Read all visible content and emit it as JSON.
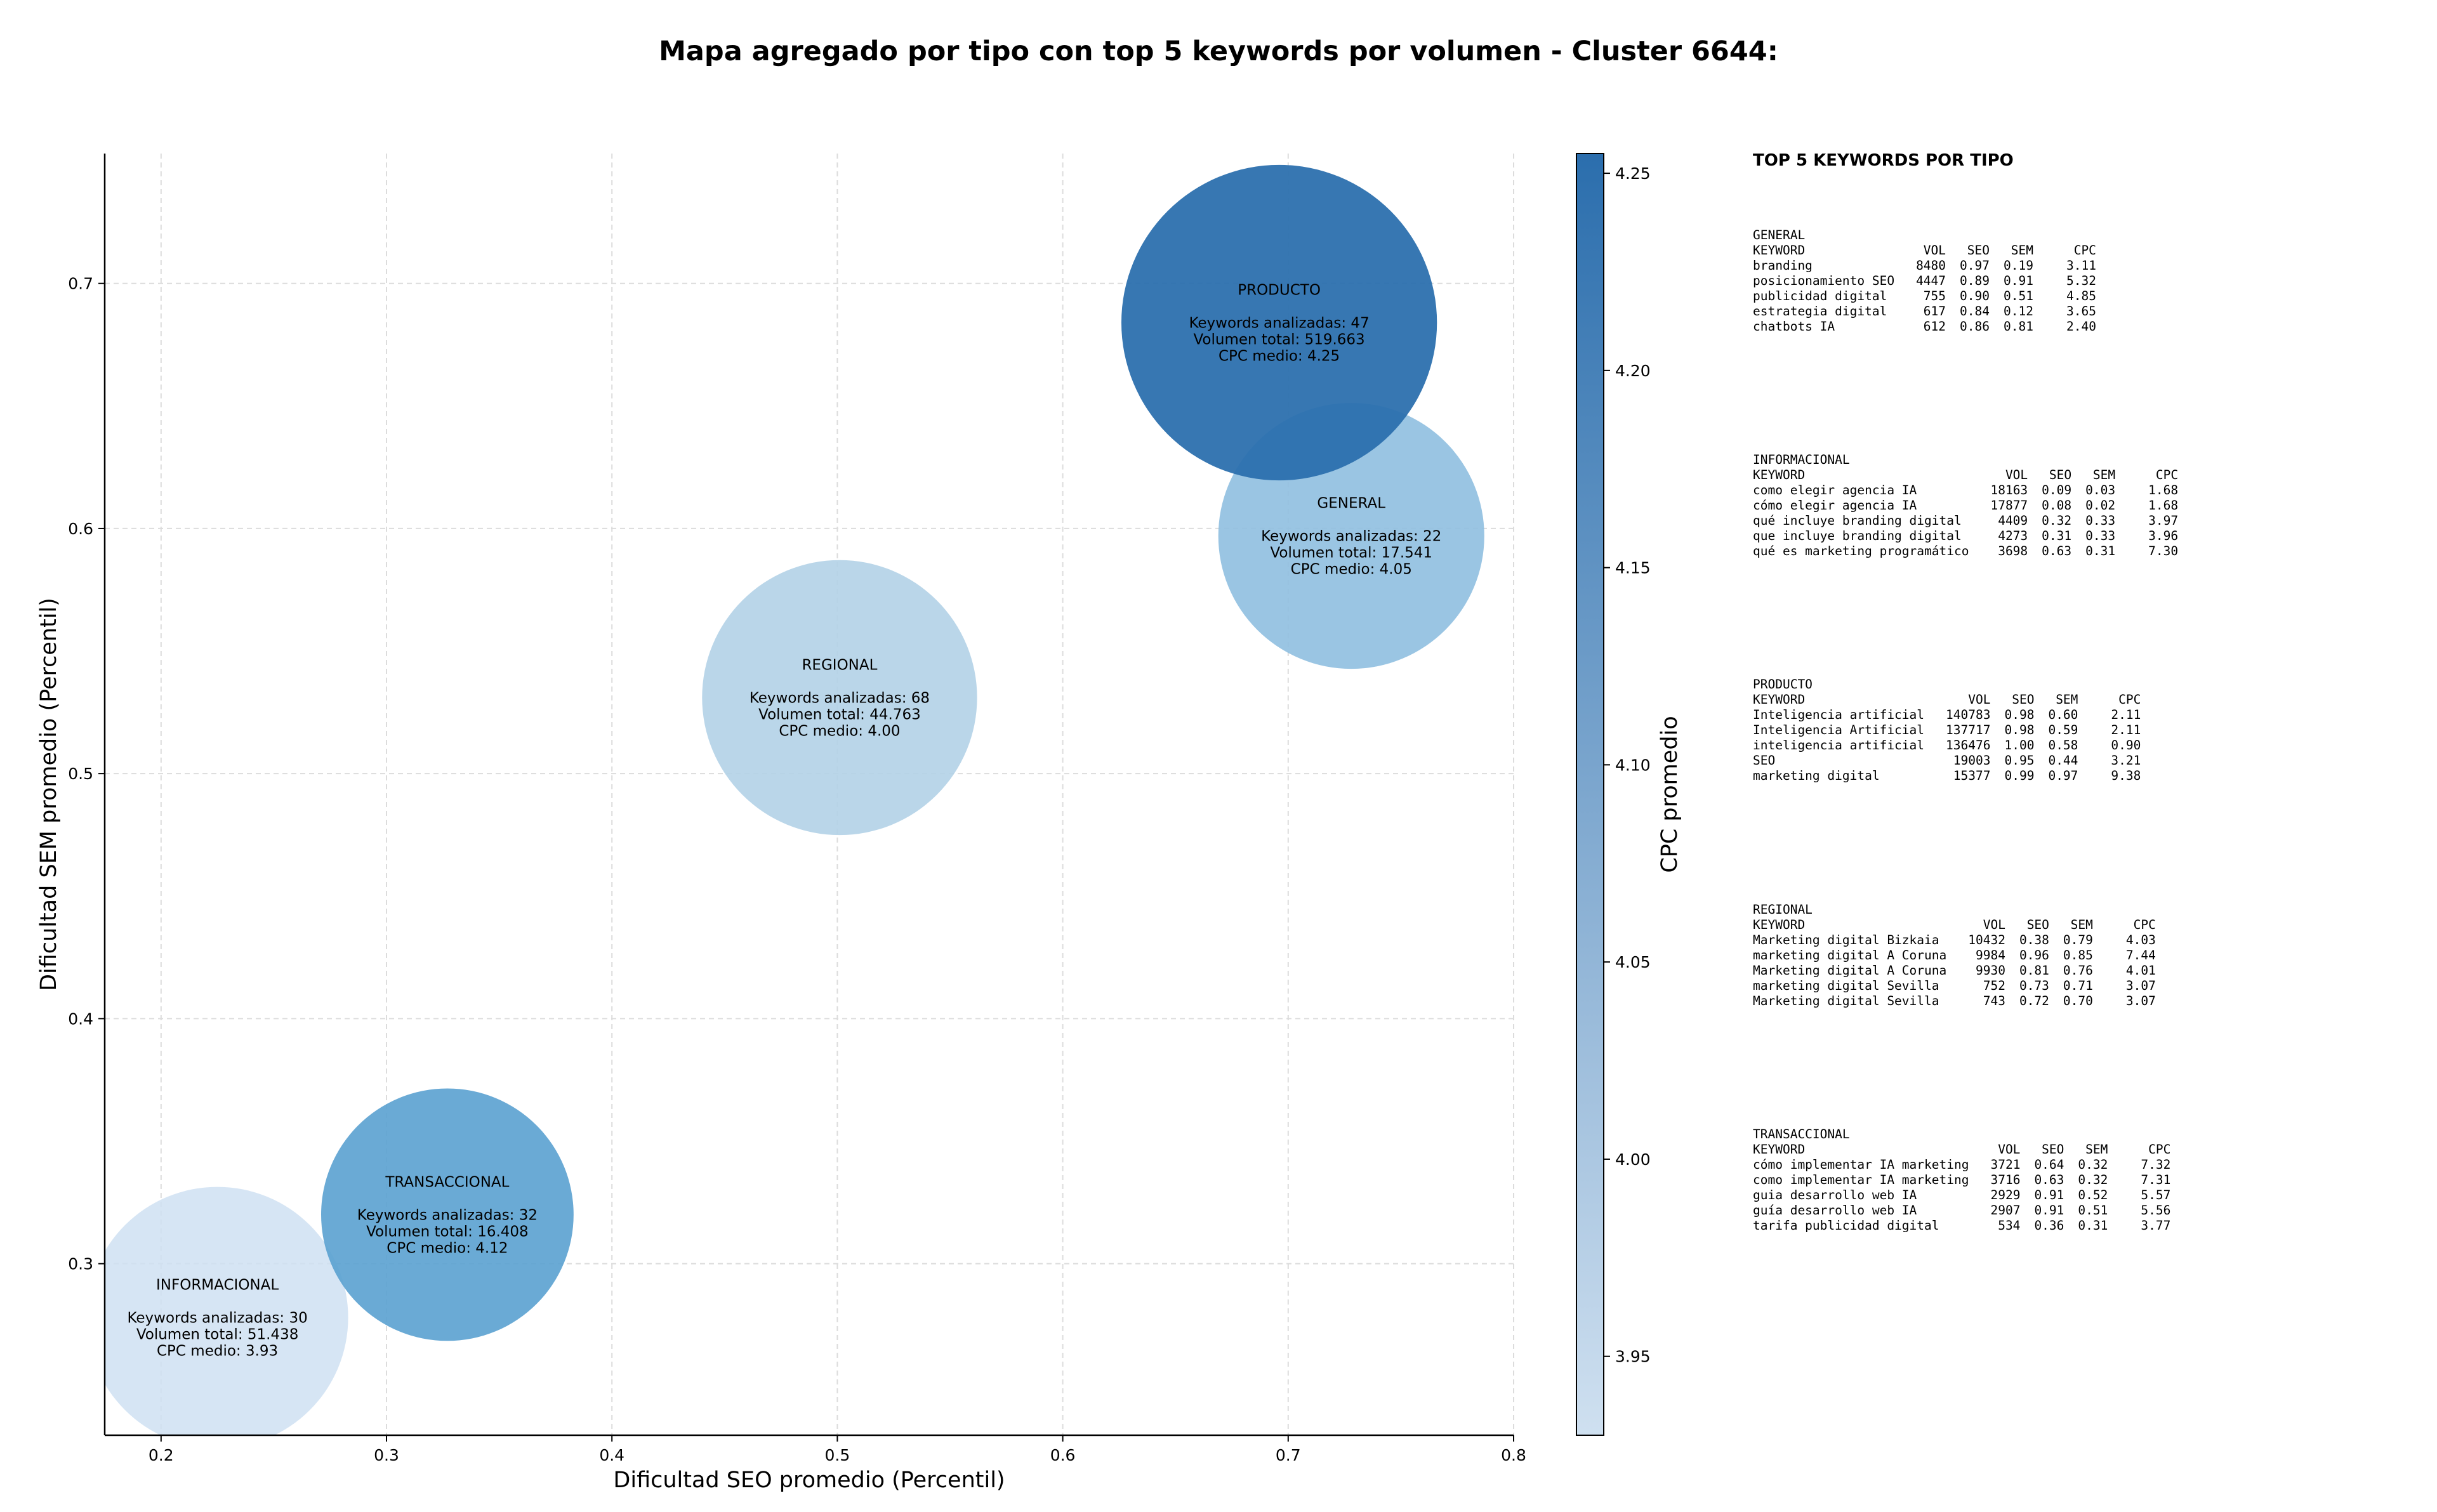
{
  "chart_data": {
    "type": "bubble",
    "title": "Mapa agregado por tipo con top 5 keywords por volumen - Cluster 6644:",
    "xlabel": "Dificultad SEO promedio (Percentil)",
    "ylabel": "Dificultad SEM promedio (Percentil)",
    "xlim": [
      0.175,
      0.8
    ],
    "ylim": [
      0.23,
      0.753
    ],
    "xticks": [
      "0.2",
      "0.3",
      "0.4",
      "0.5",
      "0.6",
      "0.7",
      "0.8"
    ],
    "yticks": [
      "0.3",
      "0.4",
      "0.5",
      "0.6",
      "0.7"
    ],
    "grid": true,
    "colorbar": {
      "label": "CPC promedio",
      "range": [
        3.93,
        4.255
      ],
      "ticks": [
        "3.95",
        "4.00",
        "4.05",
        "4.10",
        "4.15",
        "4.20",
        "4.25"
      ],
      "color_low": "#cfe0f0",
      "color_high": "#2b6ead"
    },
    "points": [
      {
        "name": "INFORMACIONAL",
        "x": 0.225,
        "y": 0.278,
        "radius_x": 0.058,
        "cpc": 3.93,
        "color": "#cfe0f2",
        "alpha": 0.85,
        "lines": [
          "Keywords analizadas: 30",
          "Volumen total: 51.438",
          "CPC medio: 3.93"
        ]
      },
      {
        "name": "TRANSACCIONAL",
        "x": 0.327,
        "y": 0.32,
        "radius_x": 0.056,
        "cpc": 4.12,
        "color": "#5aa1d0",
        "alpha": 0.9,
        "lines": [
          "Keywords analizadas: 32",
          "Volumen total: 16.408",
          "CPC medio: 4.12"
        ]
      },
      {
        "name": "REGIONAL",
        "x": 0.501,
        "y": 0.531,
        "radius_x": 0.061,
        "cpc": 4.0,
        "color": "#b3d1e7",
        "alpha": 0.9,
        "lines": [
          "Keywords analizadas: 68",
          "Volumen total: 44.763",
          "CPC medio: 4.00"
        ]
      },
      {
        "name": "GENERAL",
        "x": 0.728,
        "y": 0.597,
        "radius_x": 0.059,
        "cpc": 4.05,
        "color": "#8fbfe0",
        "alpha": 0.9,
        "lines": [
          "Keywords analizadas: 22",
          "Volumen total: 17.541",
          "CPC medio: 4.05"
        ]
      },
      {
        "name": "PRODUCTO",
        "x": 0.696,
        "y": 0.684,
        "radius_x": 0.07,
        "cpc": 4.25,
        "color": "#2b6ead",
        "alpha": 0.94,
        "lines": [
          "Keywords analizadas: 47",
          "Volumen total: 519.663",
          "CPC medio: 4.25"
        ]
      }
    ]
  },
  "top_keywords": {
    "title": "TOP 5 KEYWORDS POR TIPO",
    "columns": [
      "KEYWORD",
      "VOL",
      "SEO",
      "SEM",
      "CPC"
    ],
    "groups": [
      {
        "type": "GENERAL",
        "rows": [
          [
            "branding",
            "8480",
            "0.97",
            "0.19",
            "3.11"
          ],
          [
            "posicionamiento SEO",
            "4447",
            "0.89",
            "0.91",
            "5.32"
          ],
          [
            "publicidad digital",
            "755",
            "0.90",
            "0.51",
            "4.85"
          ],
          [
            "estrategia digital",
            "617",
            "0.84",
            "0.12",
            "3.65"
          ],
          [
            "chatbots IA",
            "612",
            "0.86",
            "0.81",
            "2.40"
          ]
        ]
      },
      {
        "type": "INFORMACIONAL",
        "rows": [
          [
            "como elegir agencia IA",
            "18163",
            "0.09",
            "0.03",
            "1.68"
          ],
          [
            "cómo elegir agencia IA",
            "17877",
            "0.08",
            "0.02",
            "1.68"
          ],
          [
            "qué incluye branding digital",
            "4409",
            "0.32",
            "0.33",
            "3.97"
          ],
          [
            "que incluye branding digital",
            "4273",
            "0.31",
            "0.33",
            "3.96"
          ],
          [
            "qué es marketing programático",
            "3698",
            "0.63",
            "0.31",
            "7.30"
          ]
        ]
      },
      {
        "type": "PRODUCTO",
        "rows": [
          [
            "Inteligencia artificial",
            "140783",
            "0.98",
            "0.60",
            "2.11"
          ],
          [
            "Inteligencia Artificial",
            "137717",
            "0.98",
            "0.59",
            "2.11"
          ],
          [
            "inteligencia artificial",
            "136476",
            "1.00",
            "0.58",
            "0.90"
          ],
          [
            "SEO",
            "19003",
            "0.95",
            "0.44",
            "3.21"
          ],
          [
            "marketing digital",
            "15377",
            "0.99",
            "0.97",
            "9.38"
          ]
        ]
      },
      {
        "type": "REGIONAL",
        "rows": [
          [
            "Marketing digital Bizkaia",
            "10432",
            "0.38",
            "0.79",
            "4.03"
          ],
          [
            "marketing digital A Coruna",
            "9984",
            "0.96",
            "0.85",
            "7.44"
          ],
          [
            "Marketing digital A Coruna",
            "9930",
            "0.81",
            "0.76",
            "4.01"
          ],
          [
            "marketing digital Sevilla",
            "752",
            "0.73",
            "0.71",
            "3.07"
          ],
          [
            "Marketing digital Sevilla",
            "743",
            "0.72",
            "0.70",
            "3.07"
          ]
        ]
      },
      {
        "type": "TRANSACCIONAL",
        "rows": [
          [
            "cómo implementar IA marketing",
            "3721",
            "0.64",
            "0.32",
            "7.32"
          ],
          [
            "como implementar IA marketing",
            "3716",
            "0.63",
            "0.32",
            "7.31"
          ],
          [
            "guia desarrollo web IA",
            "2929",
            "0.91",
            "0.52",
            "5.57"
          ],
          [
            "guía desarrollo web IA",
            "2907",
            "0.91",
            "0.51",
            "5.56"
          ],
          [
            "tarifa publicidad digital",
            "534",
            "0.36",
            "0.31",
            "3.77"
          ]
        ]
      }
    ]
  }
}
